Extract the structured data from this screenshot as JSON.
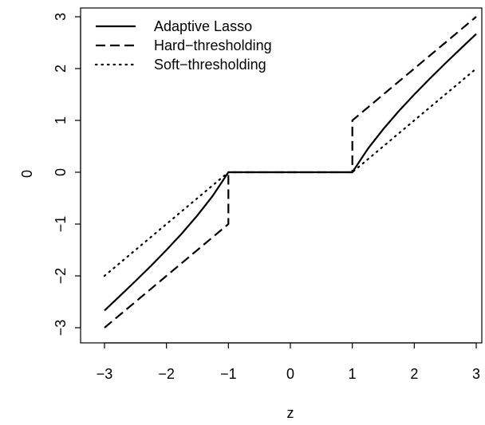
{
  "chart_data": {
    "type": "line",
    "xlabel": "z",
    "ylabel": "0",
    "xlim": [
      -3,
      3
    ],
    "ylim": [
      -3,
      3
    ],
    "xticks": [
      -3,
      -2,
      -1,
      0,
      1,
      2,
      3
    ],
    "yticks": [
      -3,
      -2,
      -1,
      0,
      1,
      2,
      3
    ],
    "x_tick_labels": [
      "−3",
      "−2",
      "−1",
      "0",
      "1",
      "2",
      "3"
    ],
    "y_tick_labels": [
      "−3",
      "−2",
      "−1",
      "0",
      "1",
      "2",
      "3"
    ],
    "grid": false,
    "legend_position": "top-left",
    "series": [
      {
        "name": "Adaptive Lasso",
        "line_style": "solid",
        "color": "#000000",
        "x": [
          -3,
          -2.75,
          -2.5,
          -2.25,
          -2,
          -1.75,
          -1.5,
          -1.25,
          -1,
          0,
          1,
          1.25,
          1.5,
          1.75,
          2,
          2.25,
          2.5,
          2.75,
          3
        ],
        "y": [
          -2.667,
          -2.386,
          -2.1,
          -1.806,
          -1.5,
          -1.179,
          -0.833,
          -0.45,
          0,
          0,
          0,
          0.45,
          0.833,
          1.179,
          1.5,
          1.806,
          2.1,
          2.386,
          2.667
        ]
      },
      {
        "name": "Hard−thresholding",
        "line_style": "dashed",
        "color": "#000000",
        "segments": [
          {
            "x": [
              -3,
              -1,
              -1,
              1,
              1,
              3
            ],
            "y": [
              -3,
              -1,
              0,
              0,
              1,
              3
            ]
          }
        ]
      },
      {
        "name": "Soft−thresholding",
        "line_style": "dotted",
        "color": "#000000",
        "x": [
          -3,
          -1,
          1,
          3
        ],
        "y": [
          -2,
          0,
          0,
          2
        ]
      }
    ]
  }
}
